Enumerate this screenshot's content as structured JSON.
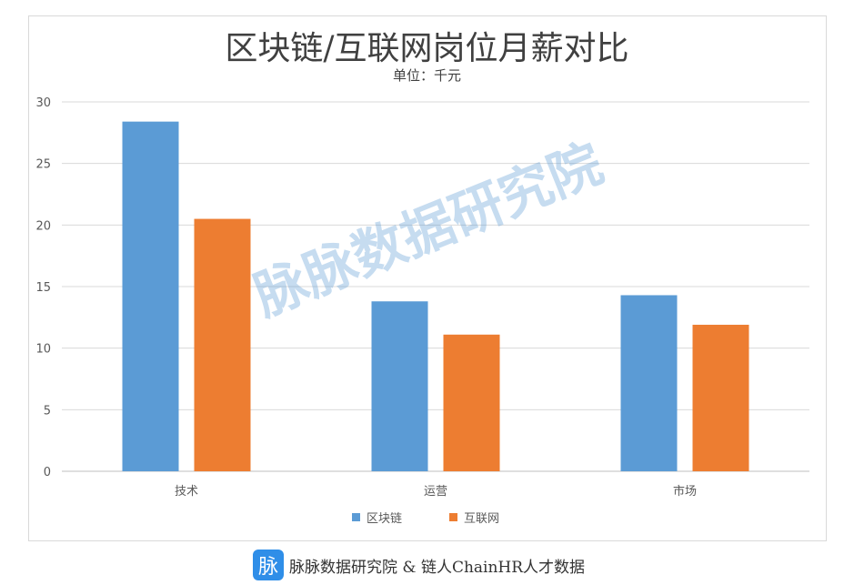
{
  "chart_data": {
    "type": "bar",
    "title": "区块链/互联网岗位月薪对比",
    "subtitle": "单位：千元",
    "categories": [
      "技术",
      "运营",
      "市场"
    ],
    "series": [
      {
        "name": "区块链",
        "color": "#5b9bd5",
        "values": [
          28.4,
          13.8,
          14.3
        ]
      },
      {
        "name": "互联网",
        "color": "#ed7d31",
        "values": [
          20.5,
          11.1,
          11.9
        ]
      }
    ],
    "ylim": [
      0,
      30
    ],
    "yticks": [
      0,
      5,
      10,
      15,
      20,
      25,
      30
    ],
    "grid": true,
    "legend": "bottom"
  },
  "watermark": "脉脉数据研究院",
  "footer": {
    "logo_char": "脉",
    "text": "脉脉数据研究院 & 链人ChainHR人才数据"
  }
}
